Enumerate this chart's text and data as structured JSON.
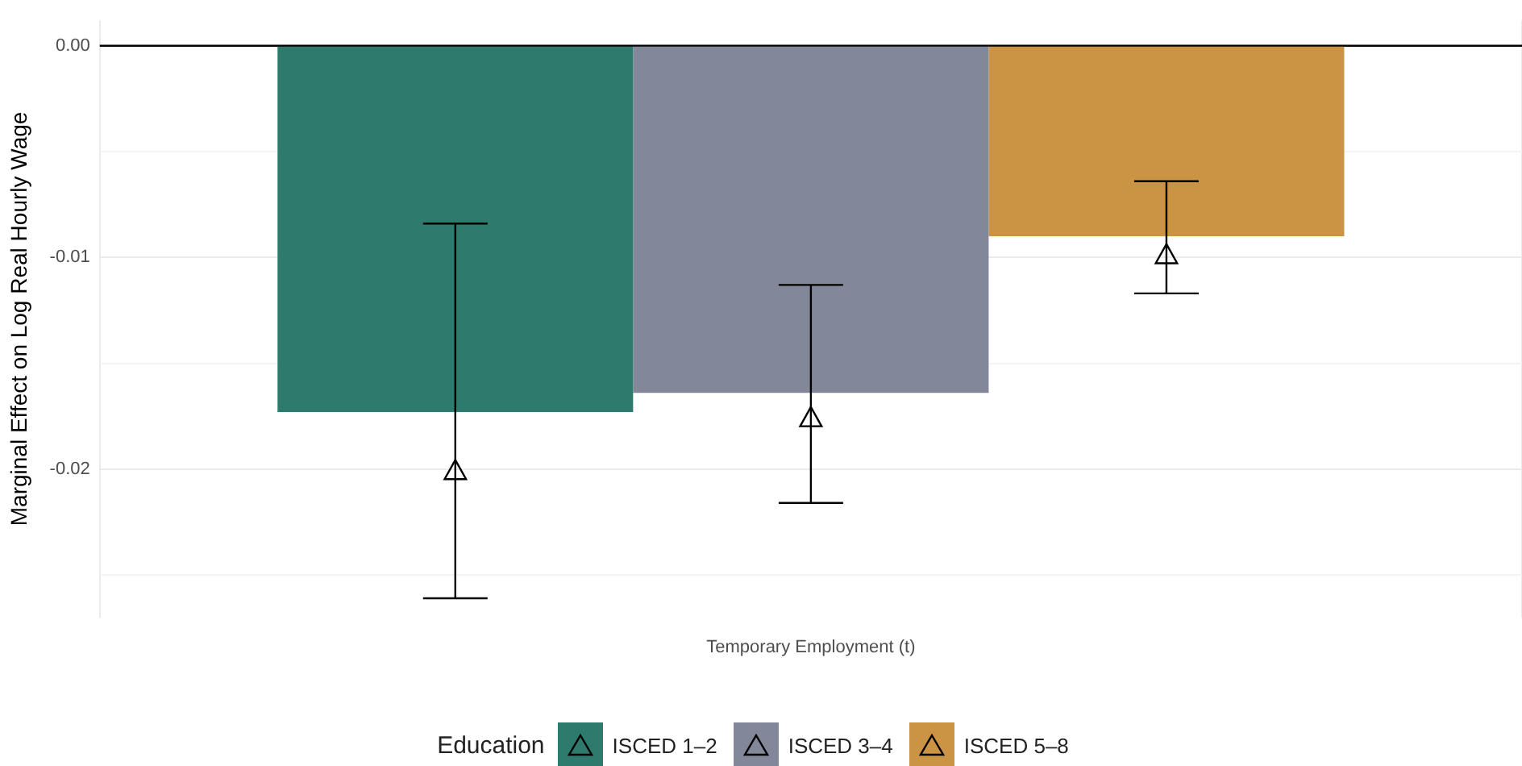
{
  "chart_data": {
    "type": "bar",
    "ylabel": "Marginal Effect on Log Real Hourly Wage",
    "legend_title": "Education",
    "categories": [
      "Temporary Employment (t)"
    ],
    "series": [
      {
        "name": "ISCED 1–2",
        "color": "#2e7a6c",
        "values": [
          -0.0173
        ]
      },
      {
        "name": "ISCED 3–4",
        "color": "#828799",
        "values": [
          -0.0164
        ]
      },
      {
        "name": "ISCED 5–8",
        "color": "#cb9444",
        "values": [
          -0.009
        ]
      },
      {
        "type": "scatter",
        "x": [
          "Temporary Employment (t)"
        ],
        "color": "#000000",
        "values": [
          -0.0201
        ],
        "errors": [
          [
            -0.0261,
            -0.0084
          ]
        ]
      },
      {
        "type": "scatter",
        "x": [
          "Temporary Employment (t)"
        ],
        "color": "#000000",
        "values": [
          -0.0176
        ],
        "errors": [
          [
            -0.0216,
            -0.0113
          ]
        ]
      },
      {
        "type": "scatter",
        "x": [
          "Temporary Employment (t)"
        ],
        "color": "#000000",
        "values": [
          -0.0099
        ],
        "errors": [
          [
            -0.0117,
            -0.0064
          ]
        ]
      }
    ],
    "ylim": [
      -0.027,
      0.0012
    ],
    "yticks": [
      {
        "value": -0.025,
        "label": null
      },
      {
        "value": -0.02,
        "label": "-0.02"
      },
      {
        "value": -0.015,
        "label": null
      },
      {
        "value": -0.01,
        "label": "-0.01"
      },
      {
        "value": -0.005,
        "label": null
      },
      {
        "value": 0,
        "label": "0.00"
      }
    ],
    "ref_lines": [
      {
        "axis": "y",
        "value": 0,
        "color": "#000000"
      }
    ],
    "grid": true,
    "legend": "bottom",
    "marker": "triangle"
  }
}
